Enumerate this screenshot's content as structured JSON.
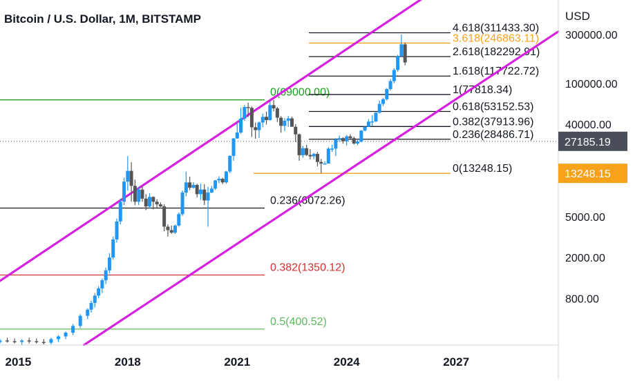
{
  "header": {
    "title": "Bitcoin / U.S. Dollar, 1M, BITSTAMP",
    "currency": "USD"
  },
  "chart_data": {
    "type": "candlestick",
    "title": "Bitcoin / U.S. Dollar, 1M, BITSTAMP",
    "y_scale": "log",
    "ylim": [
      280,
      650000
    ],
    "xlim": [
      2014.5,
      2029.8
    ],
    "x_ticks": [
      "2015",
      "2018",
      "2021",
      "2024",
      "2027"
    ],
    "y_ticks": [
      "300000.00",
      "100000.00",
      "40000.00",
      "5000.00",
      "2000.00",
      "800.00"
    ],
    "price_badges": [
      {
        "label": "27185.19",
        "color": "#4a4e58"
      },
      {
        "label": "13248.15",
        "color": "#f7a21b"
      }
    ],
    "colors": {
      "up": "#2196f3",
      "down": "#555555",
      "channel": "#d71fe0"
    },
    "channel": [
      {
        "from": [
          2014.0,
          900
        ],
        "to": [
          2026.8,
          1000000
        ]
      },
      {
        "from": [
          2016.8,
          280
        ],
        "to": [
          2029.8,
          320000
        ]
      }
    ],
    "fib_levels_upper": [
      {
        "label": "4.618(311433.30)",
        "price": 311433.3,
        "color": "#131722"
      },
      {
        "label": "3.618(246863.11)",
        "price": 246863.11,
        "color": "#f7a21b"
      },
      {
        "label": "2.618(182292.91)",
        "price": 182292.91,
        "color": "#131722"
      },
      {
        "label": "1.618(117722.72)",
        "price": 117722.72,
        "color": "#131722"
      },
      {
        "label": "1(77818.34)",
        "price": 77818.34,
        "color": "#131722"
      },
      {
        "label": "0.618(53152.53)",
        "price": 53152.53,
        "color": "#131722"
      },
      {
        "label": "0.382(37913.96)",
        "price": 37913.96,
        "color": "#131722"
      },
      {
        "label": "0.236(28486.71)",
        "price": 28486.71,
        "color": "#131722"
      },
      {
        "label": "0(13248.15)",
        "price": 13248.15,
        "color": "#131722"
      }
    ],
    "fib_levels_lower": [
      {
        "label": "0(69000.00)",
        "price": 69000,
        "color": "#1aa01a"
      },
      {
        "label": "0.236(6072.26)",
        "price": 6072.26,
        "color": "#131722"
      },
      {
        "label": "0.382(1350.12)",
        "price": 1350.12,
        "color": "#d32f2f"
      },
      {
        "label": "0.5(400.52)",
        "price": 400.52,
        "color": "#5cb85c"
      }
    ],
    "current_price": 27185.19,
    "candles": [
      {
        "t": 2014.1,
        "o": 320,
        "h": 340,
        "l": 290,
        "c": 310
      },
      {
        "t": 2014.3,
        "o": 310,
        "h": 330,
        "l": 285,
        "c": 300
      },
      {
        "t": 2014.5,
        "o": 300,
        "h": 320,
        "l": 290,
        "c": 310
      },
      {
        "t": 2014.7,
        "o": 310,
        "h": 330,
        "l": 295,
        "c": 305
      },
      {
        "t": 2014.9,
        "o": 305,
        "h": 325,
        "l": 290,
        "c": 300
      },
      {
        "t": 2015.1,
        "o": 300,
        "h": 320,
        "l": 280,
        "c": 310
      },
      {
        "t": 2015.3,
        "o": 310,
        "h": 330,
        "l": 290,
        "c": 305
      },
      {
        "t": 2015.5,
        "o": 305,
        "h": 325,
        "l": 290,
        "c": 300
      },
      {
        "t": 2015.7,
        "o": 300,
        "h": 320,
        "l": 285,
        "c": 295
      },
      {
        "t": 2015.9,
        "o": 295,
        "h": 330,
        "l": 285,
        "c": 320
      },
      {
        "t": 2016.1,
        "o": 320,
        "h": 350,
        "l": 300,
        "c": 340
      },
      {
        "t": 2016.3,
        "o": 340,
        "h": 380,
        "l": 320,
        "c": 370
      },
      {
        "t": 2016.5,
        "o": 370,
        "h": 450,
        "l": 350,
        "c": 430
      },
      {
        "t": 2016.7,
        "o": 430,
        "h": 560,
        "l": 410,
        "c": 540
      },
      {
        "t": 2016.9,
        "o": 540,
        "h": 640,
        "l": 500,
        "c": 620
      },
      {
        "t": 2017.0,
        "o": 620,
        "h": 760,
        "l": 580,
        "c": 720
      },
      {
        "t": 2017.1,
        "o": 720,
        "h": 900,
        "l": 650,
        "c": 850
      },
      {
        "t": 2017.2,
        "o": 850,
        "h": 1050,
        "l": 800,
        "c": 1000
      },
      {
        "t": 2017.3,
        "o": 1000,
        "h": 1250,
        "l": 900,
        "c": 1200
      },
      {
        "t": 2017.4,
        "o": 1200,
        "h": 1600,
        "l": 1100,
        "c": 1500
      },
      {
        "t": 2017.5,
        "o": 1500,
        "h": 2200,
        "l": 1400,
        "c": 2000
      },
      {
        "t": 2017.6,
        "o": 2000,
        "h": 3200,
        "l": 1900,
        "c": 3000
      },
      {
        "t": 2017.7,
        "o": 3000,
        "h": 4800,
        "l": 2800,
        "c": 4500
      },
      {
        "t": 2017.8,
        "o": 4500,
        "h": 7500,
        "l": 4200,
        "c": 7000
      },
      {
        "t": 2017.9,
        "o": 7000,
        "h": 12000,
        "l": 6500,
        "c": 11000
      },
      {
        "t": 2018.0,
        "o": 11000,
        "h": 19500,
        "l": 9000,
        "c": 14000
      },
      {
        "t": 2018.1,
        "o": 14000,
        "h": 17000,
        "l": 7000,
        "c": 10000
      },
      {
        "t": 2018.2,
        "o": 10000,
        "h": 11500,
        "l": 6500,
        "c": 7000
      },
      {
        "t": 2018.3,
        "o": 7000,
        "h": 9800,
        "l": 6500,
        "c": 9200
      },
      {
        "t": 2018.4,
        "o": 9200,
        "h": 9900,
        "l": 7000,
        "c": 7500
      },
      {
        "t": 2018.5,
        "o": 7500,
        "h": 8300,
        "l": 5800,
        "c": 6300
      },
      {
        "t": 2018.6,
        "o": 6300,
        "h": 8500,
        "l": 6000,
        "c": 7800
      },
      {
        "t": 2018.7,
        "o": 7800,
        "h": 7900,
        "l": 5900,
        "c": 7000
      },
      {
        "t": 2018.8,
        "o": 7000,
        "h": 7400,
        "l": 6100,
        "c": 6600
      },
      {
        "t": 2018.9,
        "o": 6600,
        "h": 6900,
        "l": 6200,
        "c": 6300
      },
      {
        "t": 2019.0,
        "o": 6300,
        "h": 6600,
        "l": 3600,
        "c": 4000
      },
      {
        "t": 2019.1,
        "o": 4000,
        "h": 4200,
        "l": 3200,
        "c": 3700
      },
      {
        "t": 2019.2,
        "o": 3700,
        "h": 4100,
        "l": 3400,
        "c": 3500
      },
      {
        "t": 2019.3,
        "o": 3500,
        "h": 4200,
        "l": 3400,
        "c": 4100
      },
      {
        "t": 2019.4,
        "o": 4100,
        "h": 5500,
        "l": 4000,
        "c": 5300
      },
      {
        "t": 2019.5,
        "o": 5300,
        "h": 9000,
        "l": 5100,
        "c": 8600
      },
      {
        "t": 2019.6,
        "o": 8600,
        "h": 13800,
        "l": 7900,
        "c": 10800
      },
      {
        "t": 2019.7,
        "o": 10800,
        "h": 12300,
        "l": 9100,
        "c": 9600
      },
      {
        "t": 2019.8,
        "o": 9600,
        "h": 10900,
        "l": 9400,
        "c": 10200
      },
      {
        "t": 2019.9,
        "o": 10200,
        "h": 10500,
        "l": 7700,
        "c": 8300
      },
      {
        "t": 2020.0,
        "o": 8300,
        "h": 10500,
        "l": 7300,
        "c": 9200
      },
      {
        "t": 2020.1,
        "o": 9200,
        "h": 10400,
        "l": 6500,
        "c": 7200
      },
      {
        "t": 2020.2,
        "o": 7200,
        "h": 9800,
        "l": 4000,
        "c": 8600
      },
      {
        "t": 2020.3,
        "o": 8600,
        "h": 10000,
        "l": 8500,
        "c": 9400
      },
      {
        "t": 2020.4,
        "o": 9400,
        "h": 11400,
        "l": 9100,
        "c": 11300
      },
      {
        "t": 2020.5,
        "o": 11300,
        "h": 12400,
        "l": 10600,
        "c": 11700
      },
      {
        "t": 2020.6,
        "o": 11700,
        "h": 12000,
        "l": 10400,
        "c": 10800
      },
      {
        "t": 2020.7,
        "o": 10800,
        "h": 14000,
        "l": 10500,
        "c": 13800
      },
      {
        "t": 2020.8,
        "o": 13800,
        "h": 19800,
        "l": 13300,
        "c": 19600
      },
      {
        "t": 2020.9,
        "o": 19600,
        "h": 29300,
        "l": 17600,
        "c": 29000
      },
      {
        "t": 2021.0,
        "o": 29000,
        "h": 41900,
        "l": 28800,
        "c": 33100
      },
      {
        "t": 2021.1,
        "o": 33100,
        "h": 58000,
        "l": 32300,
        "c": 45200
      },
      {
        "t": 2021.2,
        "o": 45200,
        "h": 61700,
        "l": 43000,
        "c": 58800
      },
      {
        "t": 2021.3,
        "o": 58800,
        "h": 64800,
        "l": 46900,
        "c": 57700
      },
      {
        "t": 2021.4,
        "o": 57700,
        "h": 59500,
        "l": 30000,
        "c": 37300
      },
      {
        "t": 2021.5,
        "o": 37300,
        "h": 41300,
        "l": 28800,
        "c": 35000
      },
      {
        "t": 2021.6,
        "o": 35000,
        "h": 42400,
        "l": 29300,
        "c": 41500
      },
      {
        "t": 2021.7,
        "o": 41500,
        "h": 50500,
        "l": 37300,
        "c": 47100
      },
      {
        "t": 2021.8,
        "o": 47100,
        "h": 52900,
        "l": 39600,
        "c": 43800
      },
      {
        "t": 2021.9,
        "o": 43800,
        "h": 67000,
        "l": 43300,
        "c": 61300
      },
      {
        "t": 2022.0,
        "o": 61300,
        "h": 69000,
        "l": 53300,
        "c": 57000
      },
      {
        "t": 2022.1,
        "o": 57000,
        "h": 59000,
        "l": 42000,
        "c": 46200
      },
      {
        "t": 2022.2,
        "o": 46200,
        "h": 47900,
        "l": 33000,
        "c": 38500
      },
      {
        "t": 2022.3,
        "o": 38500,
        "h": 45800,
        "l": 34300,
        "c": 43200
      },
      {
        "t": 2022.4,
        "o": 43200,
        "h": 48200,
        "l": 37500,
        "c": 45500
      },
      {
        "t": 2022.5,
        "o": 45500,
        "h": 47400,
        "l": 37700,
        "c": 37700
      },
      {
        "t": 2022.6,
        "o": 37700,
        "h": 40000,
        "l": 26700,
        "c": 31800
      },
      {
        "t": 2022.7,
        "o": 31800,
        "h": 32400,
        "l": 17600,
        "c": 19900
      },
      {
        "t": 2022.8,
        "o": 19900,
        "h": 24600,
        "l": 18800,
        "c": 23300
      },
      {
        "t": 2022.9,
        "o": 23300,
        "h": 25200,
        "l": 19600,
        "c": 20000
      },
      {
        "t": 2023.0,
        "o": 20000,
        "h": 22800,
        "l": 18100,
        "c": 19400
      },
      {
        "t": 2023.1,
        "o": 19400,
        "h": 21000,
        "l": 18200,
        "c": 20500
      },
      {
        "t": 2023.2,
        "o": 20500,
        "h": 21400,
        "l": 15500,
        "c": 17100
      },
      {
        "t": 2023.3,
        "o": 17100,
        "h": 18300,
        "l": 13248,
        "c": 16500
      },
      {
        "t": 2023.4,
        "o": 16500,
        "h": 17400,
        "l": 16300,
        "c": 16500
      },
      {
        "t": 2023.5,
        "o": 16500,
        "h": 23900,
        "l": 16500,
        "c": 23100
      },
      {
        "t": 2023.6,
        "o": 23100,
        "h": 25200,
        "l": 21400,
        "c": 23100
      },
      {
        "t": 2023.7,
        "o": 23100,
        "h": 29200,
        "l": 19500,
        "c": 28400
      },
      {
        "t": 2023.8,
        "o": 28400,
        "h": 31000,
        "l": 26900,
        "c": 29200
      },
      {
        "t": 2023.9,
        "o": 29200,
        "h": 29800,
        "l": 25800,
        "c": 27200
      },
      {
        "t": 2024.0,
        "o": 27200,
        "h": 31400,
        "l": 24800,
        "c": 30400
      },
      {
        "t": 2024.1,
        "o": 30400,
        "h": 31800,
        "l": 28800,
        "c": 29200
      },
      {
        "t": 2024.2,
        "o": 29200,
        "h": 30200,
        "l": 25300,
        "c": 25900
      },
      {
        "t": 2024.3,
        "o": 25900,
        "h": 28000,
        "l": 24900,
        "c": 27000
      },
      {
        "t": 2024.4,
        "o": 27000,
        "h": 35000,
        "l": 26500,
        "c": 34600
      },
      {
        "t": 2024.5,
        "o": 34600,
        "h": 38000,
        "l": 34000,
        "c": 37700
      },
      {
        "t": 2024.6,
        "o": 37700,
        "h": 44700,
        "l": 37600,
        "c": 42300
      },
      {
        "t": 2024.7,
        "o": 42300,
        "h": 48900,
        "l": 38500,
        "c": 42500
      },
      {
        "t": 2024.8,
        "o": 42500,
        "h": 52000,
        "l": 41900,
        "c": 51800
      },
      {
        "t": 2024.9,
        "o": 51800,
        "h": 68000,
        "l": 50600,
        "c": 63000
      },
      {
        "t": 2025.0,
        "o": 63000,
        "h": 72000,
        "l": 60000,
        "c": 70000
      },
      {
        "t": 2025.1,
        "o": 70000,
        "h": 90000,
        "l": 68000,
        "c": 88000
      },
      {
        "t": 2025.2,
        "o": 88000,
        "h": 110000,
        "l": 85000,
        "c": 105000
      },
      {
        "t": 2025.3,
        "o": 105000,
        "h": 140000,
        "l": 100000,
        "c": 135000
      },
      {
        "t": 2025.4,
        "o": 135000,
        "h": 190000,
        "l": 130000,
        "c": 185000
      },
      {
        "t": 2025.5,
        "o": 185000,
        "h": 300000,
        "l": 180000,
        "c": 240000
      },
      {
        "t": 2025.6,
        "o": 240000,
        "h": 250000,
        "l": 150000,
        "c": 160000
      }
    ]
  }
}
